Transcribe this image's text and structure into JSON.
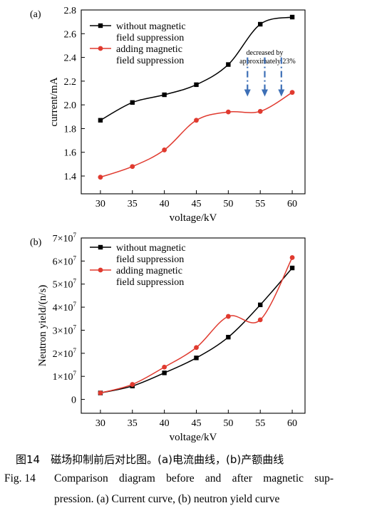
{
  "chart_data": [
    {
      "type": "line",
      "panel_label": "(a)",
      "xlabel": "voltage/kV",
      "ylabel": "current/mA",
      "xlim": [
        27,
        62
      ],
      "ylim": [
        1.25,
        2.8
      ],
      "x_ticks": [
        30,
        35,
        40,
        45,
        50,
        55,
        60
      ],
      "x_tick_labels": [
        "30",
        "35",
        "40",
        "45",
        "50",
        "55",
        "60"
      ],
      "y_ticks": [
        1.4,
        1.6,
        1.8,
        2.0,
        2.2,
        2.4,
        2.6,
        2.8
      ],
      "y_tick_labels": [
        "1.4",
        "1.6",
        "1.8",
        "2.0",
        "2.2",
        "2.4",
        "2.6",
        "2.8"
      ],
      "x": [
        30,
        35,
        40,
        45,
        50,
        55,
        60
      ],
      "series": [
        {
          "name_lines": [
            "without magnetic",
            "field suppression"
          ],
          "color": "#000000",
          "marker": "square",
          "values": [
            1.87,
            2.02,
            2.085,
            2.17,
            2.34,
            2.68,
            2.74
          ]
        },
        {
          "name_lines": [
            "adding magnetic",
            "field suppression"
          ],
          "color": "#e03a2f",
          "marker": "circle",
          "values": [
            1.39,
            1.48,
            1.62,
            1.87,
            1.94,
            1.945,
            2.105
          ]
        }
      ],
      "annotation": {
        "lines": [
          "decreased by",
          "approximately 23%"
        ],
        "arrow_color": "#3d6fb6",
        "arrow_x": [
          53,
          55.7,
          58.3
        ],
        "arrow_from": 2.4,
        "arrow_to": 2.07
      },
      "legend": "top-left",
      "grid": false
    },
    {
      "type": "line",
      "panel_label": "(b)",
      "xlabel": "voltage/kV",
      "ylabel": "Neutron yield/(n/s)",
      "xlim": [
        27,
        62
      ],
      "ylim": [
        -6000000,
        70000000
      ],
      "x_ticks": [
        30,
        35,
        40,
        45,
        50,
        55,
        60
      ],
      "x_tick_labels": [
        "30",
        "35",
        "40",
        "45",
        "50",
        "55",
        "60"
      ],
      "y_ticks": [
        0,
        10000000,
        20000000,
        30000000,
        40000000,
        50000000,
        60000000,
        70000000
      ],
      "y_tick_labels": [
        {
          "base": "0",
          "exp": ""
        },
        {
          "base": "1×10",
          "exp": "7"
        },
        {
          "base": "2×10",
          "exp": "7"
        },
        {
          "base": "3×10",
          "exp": "7"
        },
        {
          "base": "4×10",
          "exp": "7"
        },
        {
          "base": "5×10",
          "exp": "7"
        },
        {
          "base": "6×10",
          "exp": "7"
        },
        {
          "base": "7×10",
          "exp": "7"
        }
      ],
      "x": [
        30,
        35,
        40,
        45,
        50,
        55,
        60
      ],
      "series": [
        {
          "name_lines": [
            "without magnetic",
            "field suppression"
          ],
          "color": "#000000",
          "marker": "square",
          "values": [
            2800000,
            5800000,
            11500000,
            18000000,
            27000000,
            41000000,
            57000000
          ]
        },
        {
          "name_lines": [
            "adding magnetic",
            "field suppression"
          ],
          "color": "#e03a2f",
          "marker": "circle",
          "values": [
            2800000,
            6500000,
            14000000,
            22500000,
            36000000,
            34500000,
            61500000
          ]
        }
      ],
      "legend": "top-left",
      "grid": false
    }
  ],
  "caption": {
    "zh": "图14　磁场抑制前后对比图。(a)电流曲线，(b)产额曲线",
    "en_number": "Fig. 14",
    "en_line1": "Comparison diagram before and after magnetic sup-",
    "en_line2": "pression. (a) Current curve, (b) neutron yield curve"
  }
}
